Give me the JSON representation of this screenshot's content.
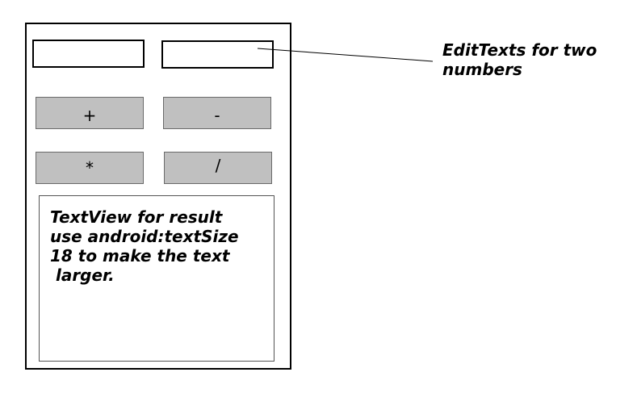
{
  "editTexts": {
    "first_value": "",
    "second_value": ""
  },
  "buttons": {
    "plus": "+",
    "minus": "-",
    "times": "*",
    "divide": "/"
  },
  "result": {
    "text": "TextView for result\nuse android:textSize\n18 to make the text\n larger."
  },
  "annotation": {
    "text": "EditTexts for two\nnumbers"
  }
}
